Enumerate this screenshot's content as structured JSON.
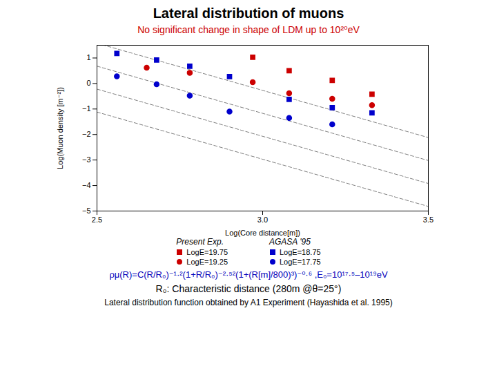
{
  "chart_data": {
    "type": "scatter",
    "title": "Lateral distribution of muons",
    "subtitle": "No significant change in shape of LDM up to 10²⁰eV",
    "subtitle_color": "#cc0000",
    "xlabel": "Log(Core distance[m])",
    "ylabel": "Log(Muon density [m⁻²])",
    "xlim": [
      2.5,
      3.5
    ],
    "ylim": [
      -5,
      1.5
    ],
    "xticks": [
      2.5,
      {
        "value": 3,
        "label": "3.0"
      },
      3.5
    ],
    "yticks": [
      -5,
      -4,
      -3,
      -2,
      -1,
      0,
      1
    ],
    "grid": false,
    "legend": "bottom",
    "series": [
      {
        "name": "LogE=19.75",
        "group": "Present Exp.",
        "color": "#cc0000",
        "marker": "square",
        "x": [
          2.97,
          3.08,
          3.21,
          3.33
        ],
        "values": [
          1.03,
          0.5,
          0.12,
          -0.42
        ],
        "yerr": [
          0.09,
          0.06,
          0.06,
          0.07
        ]
      },
      {
        "name": "LogE=19.25",
        "group": "Present Exp.",
        "color": "#cc0000",
        "marker": "circle",
        "x": [
          2.65,
          2.78,
          2.97,
          3.08,
          3.21,
          3.33
        ],
        "values": [
          0.62,
          0.42,
          0.05,
          -0.38,
          -0.6,
          -0.85
        ],
        "yerr": [
          0.05,
          0.04,
          0.04,
          0.04,
          0.04,
          0.05
        ]
      },
      {
        "name": "LogE=18.75",
        "group": "AGASA '95",
        "color": "#0000cc",
        "marker": "square",
        "x": [
          2.56,
          2.68,
          2.78,
          2.9,
          3.08,
          3.21,
          3.33
        ],
        "values": [
          1.18,
          0.92,
          0.68,
          0.27,
          -0.62,
          -0.95,
          -1.15
        ]
      },
      {
        "name": "LogE=17.75",
        "group": "AGASA '95",
        "color": "#0000cc",
        "marker": "circle",
        "x": [
          2.56,
          2.68,
          2.78,
          2.9,
          3.08,
          3.21
        ],
        "values": [
          0.28,
          -0.03,
          -0.48,
          -1.1,
          -1.35,
          -1.6
        ]
      }
    ],
    "fit_lines": [
      {
        "x": [
          2.5,
          3.5
        ],
        "values": [
          1.58,
          -2.12
        ]
      },
      {
        "x": [
          2.5,
          3.5
        ],
        "values": [
          0.68,
          -3.02
        ]
      },
      {
        "x": [
          2.5,
          3.5
        ],
        "values": [
          -0.22,
          -3.92
        ]
      },
      {
        "x": [
          2.5,
          3.5
        ],
        "values": [
          -1.12,
          -4.82
        ]
      }
    ],
    "fit_line_style": "dashed",
    "annotations": [
      {
        "text": "ρμ(R)=C(R/R₀)⁻¹·²(1+R/R₀)⁻²·⁵²(1+(R[m]/800)³)⁻⁰·⁶  ,E₀=10¹⁷·⁵–10¹⁹eV",
        "color": "#0000bb"
      },
      {
        "text": "R₀: Characteristic distance (280m @θ=25°)"
      },
      {
        "text": "Lateral distribution function obtained by A1 Experiment  (Hayashida et al. 1995)"
      }
    ]
  }
}
